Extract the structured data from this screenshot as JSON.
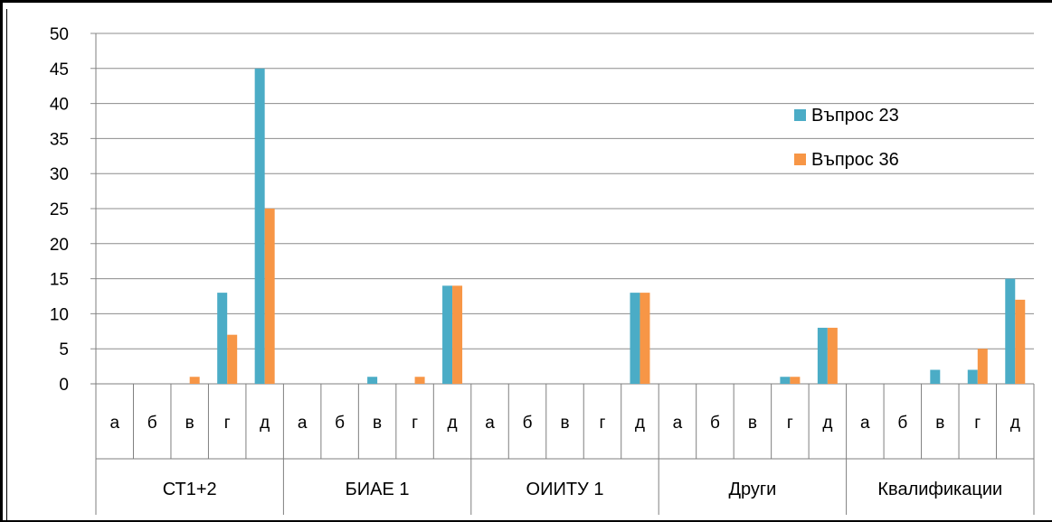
{
  "chart_data": {
    "type": "bar",
    "title": "",
    "xlabel": "",
    "ylabel": "",
    "ylim": [
      0,
      50
    ],
    "yticks": [
      "0",
      "5",
      "10",
      "15",
      "20",
      "25",
      "30",
      "35",
      "40",
      "45",
      "50"
    ],
    "grid": true,
    "legend_position": "right",
    "groups": [
      {
        "label": "СТ1+2",
        "categories": [
          "а",
          "б",
          "в",
          "г",
          "д"
        ]
      },
      {
        "label": "БИАЕ 1",
        "categories": [
          "а",
          "б",
          "в",
          "г",
          "д"
        ]
      },
      {
        "label": "ОИИТУ 1",
        "categories": [
          "а",
          "б",
          "в",
          "г",
          "д"
        ]
      },
      {
        "label": "Други",
        "categories": [
          "а",
          "б",
          "в",
          "г",
          "д"
        ]
      },
      {
        "label": "Квалификации",
        "categories": [
          "а",
          "б",
          "в",
          "г",
          "д"
        ]
      }
    ],
    "series": [
      {
        "name": "Въпрос 23",
        "color": "#4BACC6",
        "values": [
          0,
          0,
          0,
          13,
          45,
          0,
          0,
          1,
          0,
          14,
          0,
          0,
          0,
          0,
          13,
          0,
          0,
          0,
          1,
          8,
          0,
          0,
          2,
          2,
          15
        ]
      },
      {
        "name": "Въпрос 36",
        "color": "#F79646",
        "values": [
          0,
          0,
          1,
          7,
          25,
          0,
          0,
          0,
          1,
          14,
          0,
          0,
          0,
          0,
          13,
          0,
          0,
          0,
          1,
          8,
          0,
          0,
          0,
          5,
          12
        ]
      }
    ]
  }
}
